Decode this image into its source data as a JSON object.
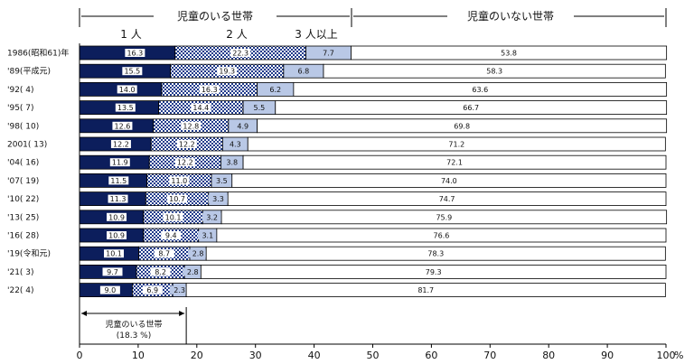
{
  "chart_data": {
    "type": "bar",
    "orientation": "horizontal",
    "stacked": true,
    "xlim": [
      0,
      100
    ],
    "x_ticks": [
      0,
      10,
      20,
      30,
      40,
      50,
      60,
      70,
      80,
      90,
      100
    ],
    "x_unit": "%",
    "categories": [
      "1986(昭和61)年",
      "'89(平成元)",
      "'92(    4)",
      "'95(    7)",
      "'98(   10)",
      "2001(   13)",
      "'04(   16)",
      "'07(   19)",
      "'10(   22)",
      "'13(   25)",
      "'16(   28)",
      "'19(令和元)",
      "'21(    3)",
      "'22(    4)"
    ],
    "series": [
      {
        "name": "1 人",
        "color": "#0c1e5c",
        "pattern": "solid",
        "values": [
          16.3,
          15.5,
          14.0,
          13.5,
          12.6,
          12.2,
          11.9,
          11.5,
          11.3,
          10.9,
          10.9,
          10.1,
          9.7,
          9.0
        ]
      },
      {
        "name": "2 人",
        "color": "#1f3a8a",
        "pattern": "check",
        "values": [
          22.3,
          19.3,
          16.3,
          14.4,
          12.8,
          12.2,
          12.2,
          11.0,
          10.7,
          10.1,
          9.4,
          8.7,
          8.2,
          6.9
        ]
      },
      {
        "name": "3 人以上",
        "color": "#b9c8e6",
        "pattern": "solid",
        "values": [
          7.7,
          6.8,
          6.2,
          5.5,
          4.9,
          4.3,
          3.8,
          3.5,
          3.3,
          3.2,
          3.1,
          2.8,
          2.8,
          2.3
        ]
      },
      {
        "name": "児童のいない世帯",
        "color": "#ffffff",
        "pattern": "solid",
        "values": [
          53.8,
          58.3,
          63.6,
          66.7,
          69.8,
          71.2,
          72.1,
          74.0,
          74.7,
          75.9,
          76.6,
          78.3,
          79.3,
          81.7
        ]
      }
    ],
    "header_with_children": "児童のいる世帯",
    "header_without_children": "児童のいない世帯",
    "annotation": {
      "label": "児童のいる世帯",
      "value": "(18.3 %)"
    },
    "grid": false
  }
}
